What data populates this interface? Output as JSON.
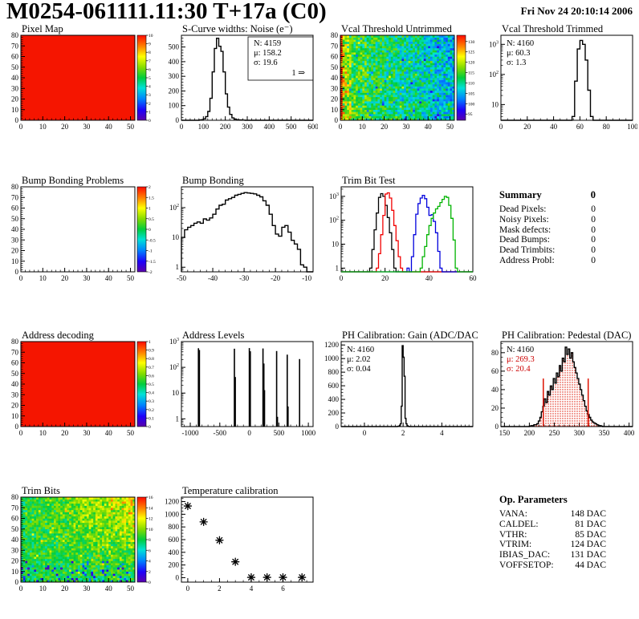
{
  "header": {
    "title": "M0254-061111.11:30 T+17a (C0)",
    "date": "Fri Nov 24 20:10:14 2006"
  },
  "summary": {
    "title": "Summary",
    "total": "0",
    "rows": [
      {
        "label": "Dead Pixels:",
        "value": "0"
      },
      {
        "label": "Noisy Pixels:",
        "value": "0"
      },
      {
        "label": "Mask defects:",
        "value": "0"
      },
      {
        "label": "Dead Bumps:",
        "value": "0"
      },
      {
        "label": "Dead Trimbits:",
        "value": "0"
      },
      {
        "label": "Address Probl:",
        "value": "0"
      }
    ]
  },
  "op_parameters": {
    "title": "Op. Parameters",
    "rows": [
      {
        "label": "VANA:",
        "value": "148 DAC"
      },
      {
        "label": "CALDEL:",
        "value": "81 DAC"
      },
      {
        "label": "VTHR:",
        "value": "85 DAC"
      },
      {
        "label": "VTRIM:",
        "value": "124 DAC"
      },
      {
        "label": "IBIAS_DAC:",
        "value": "131 DAC"
      },
      {
        "label": "VOFFSETOP:",
        "value": "44 DAC"
      }
    ]
  },
  "chart_data": [
    {
      "id": "pixel-map",
      "type": "heatmap",
      "title": "Pixel Map",
      "x": {
        "min": 0,
        "max": 52,
        "ticks": [
          0,
          10,
          20,
          30,
          40,
          50
        ],
        "minor": 2
      },
      "y": {
        "min": 0,
        "max": 80,
        "ticks": [
          0,
          10,
          20,
          30,
          40,
          50,
          60,
          70,
          80
        ],
        "minor": 2
      },
      "fill": {
        "mode": "solid",
        "color": "#f51500"
      },
      "colorbar": {
        "min": 0,
        "max": 10,
        "labels": [
          0,
          1,
          2,
          3,
          4,
          5,
          6,
          7,
          8,
          9,
          10
        ]
      }
    },
    {
      "id": "scurve-noise",
      "type": "hist",
      "title": "S-Curve widths: Noise (e⁻)",
      "color": "#000000",
      "x": {
        "min": 0,
        "max": 600,
        "ticks": [
          0,
          100,
          200,
          300,
          400,
          500,
          600
        ],
        "minor": 20
      },
      "y": {
        "scale": "lin",
        "min": 0,
        "max": 580,
        "ticks": [
          0,
          100,
          200,
          300,
          400,
          500
        ],
        "minor": 20
      },
      "bins": {
        "start": 80,
        "width": 10,
        "values": [
          2,
          4,
          10,
          25,
          60,
          150,
          330,
          490,
          560,
          505,
          470,
          330,
          180,
          90,
          40,
          16,
          8,
          4,
          2,
          2,
          1
        ]
      },
      "stats": {
        "box": true,
        "pos": "right",
        "lines": [
          {
            "t": "N: 4159",
            "c": "#000"
          },
          {
            "t": "μ: 158.2",
            "c": "#000"
          },
          {
            "t": "σ: 19.6",
            "c": "#000"
          }
        ],
        "extra": "1 ⇒"
      }
    },
    {
      "id": "vcal-threshold-untrimmed",
      "type": "heatmap",
      "title": "Vcal Threshold Untrimmed",
      "x": {
        "min": 0,
        "max": 52,
        "ticks": [
          0,
          10,
          20,
          30,
          40,
          50
        ],
        "minor": 2
      },
      "y": {
        "min": 0,
        "max": 80,
        "ticks": [
          0,
          10,
          20,
          30,
          40,
          50,
          60,
          70,
          80
        ],
        "minor": 2
      },
      "fill": {
        "mode": "noise",
        "pattern": "vcal",
        "seed": 7
      },
      "colorbar": {
        "min": 92,
        "max": 133,
        "labels": [
          95,
          100,
          105,
          110,
          115,
          120,
          125,
          130
        ]
      }
    },
    {
      "id": "vcal-threshold-trimmed",
      "type": "hist",
      "title": "Vcal Threshold Trimmed",
      "color": "#000000",
      "x": {
        "min": 0,
        "max": 100,
        "ticks": [
          0,
          20,
          40,
          60,
          80,
          100
        ],
        "minor": 5
      },
      "y": {
        "scale": "log",
        "min": 3,
        "max": 2000
      },
      "bins": {
        "start": 54,
        "width": 2,
        "values": [
          4,
          60,
          700,
          1350,
          1000,
          300,
          30,
          4
        ]
      },
      "stats": {
        "box": false,
        "pos": "left",
        "lines": [
          {
            "t": "N: 4160",
            "c": "#000"
          },
          {
            "t": "μ: 60.3",
            "c": "#000"
          },
          {
            "t": "σ:  1.3",
            "c": "#000"
          }
        ]
      }
    },
    {
      "id": "bump-bonding-problems",
      "type": "heatmap",
      "title": "Bump Bonding Problems",
      "x": {
        "min": 0,
        "max": 52,
        "ticks": [
          0,
          10,
          20,
          30,
          40,
          50
        ],
        "minor": 2
      },
      "y": {
        "min": 0,
        "max": 80,
        "ticks": [
          0,
          10,
          20,
          30,
          40,
          50,
          60,
          70,
          80
        ],
        "minor": 2
      },
      "fill": {
        "mode": "empty"
      },
      "colorbar": {
        "min": -2,
        "max": 2,
        "labels": [
          -2,
          -1.5,
          -1,
          -0.5,
          0,
          0.5,
          1,
          1.5,
          2
        ]
      }
    },
    {
      "id": "bump-bonding",
      "type": "hist",
      "title": "Bump Bonding",
      "color": "#000000",
      "x": {
        "min": -50,
        "max": -8,
        "ticks": [
          -50,
          -40,
          -30,
          -20,
          -10
        ],
        "minor": 2
      },
      "y": {
        "scale": "log",
        "min": 0.7,
        "max": 500
      },
      "bins": {
        "start": -50,
        "width": 1,
        "values": [
          10,
          18,
          22,
          25,
          30,
          33,
          30,
          42,
          38,
          45,
          60,
          90,
          120,
          130,
          180,
          200,
          220,
          260,
          280,
          300,
          320,
          310,
          300,
          290,
          260,
          230,
          170,
          120,
          60,
          25,
          13,
          11,
          22,
          25,
          15,
          8,
          6,
          4,
          1.2,
          1
        ]
      }
    },
    {
      "id": "trim-bit-test",
      "type": "multihist",
      "title": "Trim Bit Test",
      "x": {
        "min": 0,
        "max": 60,
        "ticks": [
          0,
          20,
          40,
          60
        ],
        "minor": 2
      },
      "y": {
        "scale": "log",
        "min": 0.7,
        "max": 2500
      },
      "series": [
        {
          "name": "trim-bits-14",
          "color": "#000000",
          "start": 13,
          "values": [
            1,
            6,
            40,
            200,
            900,
            1300,
            1000,
            420,
            130,
            30,
            6,
            1
          ]
        },
        {
          "name": "trim-bits-13",
          "color": "#f20000",
          "start": 16,
          "values": [
            1,
            4,
            25,
            160,
            1250,
            1400,
            850,
            260,
            60,
            14,
            3,
            1
          ]
        },
        {
          "name": "trim-bits-11",
          "color": "#0000dd",
          "start": 30,
          "values": [
            1,
            0,
            3,
            25,
            180,
            500,
            850,
            1100,
            800,
            350,
            160,
            170,
            90,
            30,
            5,
            1
          ]
        },
        {
          "name": "trim-bits-7",
          "color": "#00b400",
          "start": 36,
          "values": [
            1,
            3,
            8,
            25,
            60,
            120,
            200,
            300,
            380,
            550,
            750,
            1000,
            900,
            420,
            120,
            15,
            1
          ]
        }
      ]
    },
    {
      "id": "address-decoding",
      "type": "heatmap",
      "title": "Address decoding",
      "x": {
        "min": 0,
        "max": 52,
        "ticks": [
          0,
          10,
          20,
          30,
          40,
          50
        ],
        "minor": 2
      },
      "y": {
        "min": 0,
        "max": 80,
        "ticks": [
          0,
          10,
          20,
          30,
          40,
          50,
          60,
          70,
          80
        ],
        "minor": 2
      },
      "fill": {
        "mode": "solid",
        "color": "#f51500"
      },
      "colorbar": {
        "min": 0,
        "max": 1,
        "labels": [
          0,
          0.1,
          0.2,
          0.3,
          0.4,
          0.5,
          0.6,
          0.7,
          0.8,
          0.9,
          1
        ]
      }
    },
    {
      "id": "address-levels",
      "type": "spikes",
      "title": "Address Levels",
      "x": {
        "min": -1150,
        "max": 1080,
        "ticks": [
          -1000,
          -500,
          0,
          500,
          1000
        ],
        "minor": 100
      },
      "y": {
        "scale": "log",
        "min": 0.5,
        "max": 1000
      },
      "bars": [
        [
          -862,
          550
        ],
        [
          -846,
          470
        ],
        [
          -252,
          530
        ],
        [
          -238,
          42
        ],
        [
          0,
          560
        ],
        [
          16,
          420
        ],
        [
          232,
          540
        ],
        [
          246,
          140
        ],
        [
          258,
          13
        ],
        [
          462,
          430
        ],
        [
          476,
          1.2
        ],
        [
          642,
          310
        ],
        [
          656,
          3
        ],
        [
          852,
          210
        ]
      ],
      "barw": 14
    },
    {
      "id": "ph-calibration-gain",
      "type": "hist",
      "title": "PH Calibration: Gain (ADC/DAC)",
      "color": "#000000",
      "x": {
        "min": -1.2,
        "max": 5.6,
        "ticks": [
          0,
          2,
          4
        ],
        "minor": 0.2
      },
      "y": {
        "scale": "lin",
        "min": 0,
        "max": 1250,
        "ticks": [
          0,
          200,
          400,
          600,
          800,
          1000,
          1200
        ],
        "minor": 50
      },
      "bins": {
        "start": 1.7,
        "width": 0.05,
        "values": [
          2,
          5,
          12,
          40,
          300,
          1190,
          1020,
          740,
          120,
          40,
          12,
          4,
          1
        ]
      },
      "stats": {
        "box": false,
        "pos": "left",
        "lines": [
          {
            "t": "N: 4160",
            "c": "#000"
          },
          {
            "t": "μ: 2.02",
            "c": "#000"
          },
          {
            "t": "σ: 0.04",
            "c": "#000"
          }
        ]
      }
    },
    {
      "id": "ph-calibration-pedestal",
      "type": "hist",
      "title": "PH Calibration: Pedestal (DAC)",
      "color": "#000000",
      "fillDots": true,
      "x": {
        "min": 143,
        "max": 407,
        "ticks": [
          150,
          200,
          250,
          300,
          350,
          400
        ],
        "minor": 10
      },
      "y": {
        "scale": "lin",
        "min": 0,
        "max": 92,
        "ticks": [
          0,
          20,
          40,
          60,
          80
        ],
        "minor": 5
      },
      "bins": {
        "start": 200,
        "width": 3,
        "values": [
          0.5,
          1,
          1,
          2,
          2,
          3,
          6,
          10,
          16,
          22,
          30,
          26,
          38,
          34,
          44,
          40,
          52,
          47,
          58,
          54,
          66,
          60,
          74,
          70,
          86,
          78,
          84,
          74,
          80,
          70,
          64,
          58,
          52,
          46,
          40,
          34,
          28,
          22,
          17,
          13,
          10,
          7,
          5,
          4,
          3,
          2,
          1,
          1,
          0.5,
          0
        ]
      },
      "vlines": [
        {
          "x": 228,
          "h": 52
        },
        {
          "x": 318,
          "h": 52
        }
      ],
      "stats": {
        "box": false,
        "pos": "left",
        "lines": [
          {
            "t": "N: 4160",
            "c": "#000"
          },
          {
            "t": "μ: 269.3",
            "c": "#cc0000"
          },
          {
            "t": "σ: 20.4",
            "c": "#cc0000"
          }
        ]
      }
    },
    {
      "id": "trim-bits",
      "type": "heatmap",
      "title": "Trim Bits",
      "x": {
        "min": 0,
        "max": 52,
        "ticks": [
          0,
          10,
          20,
          30,
          40,
          50
        ],
        "minor": 2
      },
      "y": {
        "min": 0,
        "max": 80,
        "ticks": [
          0,
          10,
          20,
          30,
          40,
          50,
          60,
          70,
          80
        ],
        "minor": 2
      },
      "fill": {
        "mode": "noise",
        "pattern": "trimbits",
        "seed": 11
      },
      "colorbar": {
        "min": 0,
        "max": 16,
        "labels": [
          0,
          2,
          4,
          6,
          8,
          10,
          12,
          14,
          16
        ]
      }
    },
    {
      "id": "temperature-calibration",
      "type": "scatter",
      "title": "Temperature calibration",
      "marker": "asterisk",
      "x": {
        "min": -0.4,
        "max": 7.9,
        "ticks": [
          0,
          2,
          4,
          6
        ],
        "minor": 0.5
      },
      "y": {
        "scale": "lin",
        "min": -70,
        "max": 1270,
        "ticks": [
          0,
          200,
          400,
          600,
          800,
          1000,
          1200
        ],
        "minor": 50
      },
      "points": [
        [
          0,
          1130
        ],
        [
          1,
          880
        ],
        [
          2,
          590
        ],
        [
          3,
          250
        ],
        [
          4,
          5
        ],
        [
          5,
          5
        ],
        [
          6,
          5
        ],
        [
          7.2,
          5
        ]
      ]
    }
  ]
}
